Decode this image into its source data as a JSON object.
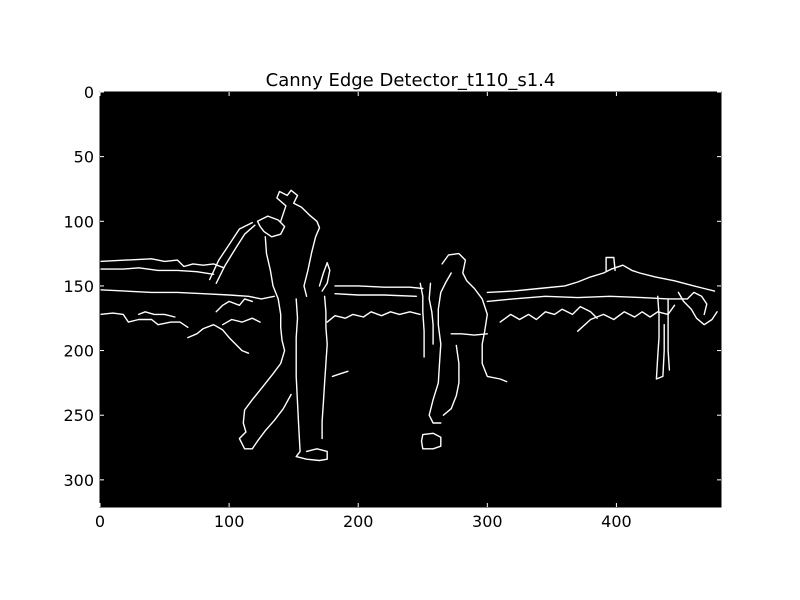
{
  "chart_data": {
    "type": "image",
    "title": "Canny Edge Detector_t110_s1.4",
    "image_width": 481,
    "image_height": 321,
    "xlim": [
      0,
      481
    ],
    "ylim": [
      321,
      0
    ],
    "xticks": [
      0,
      100,
      200,
      300,
      400
    ],
    "yticks": [
      0,
      50,
      100,
      150,
      200,
      250,
      300
    ],
    "xtick_labels": [
      "0",
      "100",
      "200",
      "300",
      "400"
    ],
    "ytick_labels": [
      "0",
      "50",
      "100",
      "150",
      "200",
      "250",
      "300"
    ],
    "background_color": "#000000",
    "edge_color": "#ffffff",
    "edges": [
      [
        [
          0,
          131
        ],
        [
          20,
          130
        ],
        [
          40,
          129
        ],
        [
          50,
          131
        ],
        [
          60,
          130
        ],
        [
          65,
          135
        ],
        [
          72,
          133
        ],
        [
          80,
          134
        ],
        [
          88,
          133
        ],
        [
          96,
          136
        ]
      ],
      [
        [
          0,
          137
        ],
        [
          18,
          137
        ],
        [
          30,
          136
        ],
        [
          45,
          138
        ],
        [
          60,
          138
        ],
        [
          75,
          139
        ],
        [
          88,
          141
        ]
      ],
      [
        [
          0,
          153
        ],
        [
          20,
          154
        ],
        [
          40,
          155
        ],
        [
          60,
          155
        ],
        [
          80,
          156
        ],
        [
          100,
          157
        ],
        [
          115,
          158
        ],
        [
          125,
          160
        ],
        [
          135,
          158
        ]
      ],
      [
        [
          0,
          172
        ],
        [
          10,
          171
        ],
        [
          18,
          172
        ],
        [
          22,
          178
        ],
        [
          30,
          176
        ],
        [
          40,
          176
        ],
        [
          45,
          180
        ],
        [
          55,
          178
        ],
        [
          62,
          178
        ],
        [
          68,
          182
        ]
      ],
      [
        [
          30,
          172
        ],
        [
          35,
          170
        ],
        [
          42,
          172
        ],
        [
          50,
          172
        ],
        [
          58,
          174
        ]
      ],
      [
        [
          68,
          190
        ],
        [
          75,
          187
        ],
        [
          80,
          183
        ],
        [
          88,
          180
        ],
        [
          95,
          184
        ],
        [
          100,
          190
        ],
        [
          105,
          195
        ],
        [
          110,
          200
        ],
        [
          115,
          202
        ]
      ],
      [
        [
          90,
          170
        ],
        [
          95,
          165
        ],
        [
          100,
          162
        ],
        [
          108,
          165
        ],
        [
          112,
          160
        ],
        [
          118,
          162
        ]
      ],
      [
        [
          95,
          180
        ],
        [
          102,
          176
        ],
        [
          110,
          178
        ],
        [
          118,
          175
        ],
        [
          124,
          178
        ]
      ],
      [
        [
          85,
          145
        ],
        [
          92,
          130
        ],
        [
          100,
          118
        ],
        [
          108,
          106
        ],
        [
          118,
          101
        ]
      ],
      [
        [
          90,
          148
        ],
        [
          97,
          134
        ],
        [
          105,
          121
        ],
        [
          112,
          110
        ],
        [
          120,
          103
        ]
      ],
      [
        [
          122,
          100
        ],
        [
          130,
          96
        ],
        [
          138,
          99
        ],
        [
          143,
          104
        ],
        [
          140,
          110
        ],
        [
          133,
          112
        ],
        [
          127,
          108
        ],
        [
          124,
          104
        ],
        [
          122,
          100
        ]
      ],
      [
        [
          140,
          100
        ],
        [
          144,
          88
        ],
        [
          137,
          82
        ],
        [
          139,
          77
        ],
        [
          145,
          80
        ],
        [
          148,
          76
        ],
        [
          153,
          80
        ],
        [
          150,
          86
        ],
        [
          156,
          89
        ],
        [
          162,
          95
        ],
        [
          168,
          100
        ],
        [
          170,
          105
        ],
        [
          167,
          112
        ],
        [
          164,
          124
        ],
        [
          161,
          138
        ],
        [
          158,
          150
        ],
        [
          160,
          158
        ]
      ],
      [
        [
          128,
          112
        ],
        [
          129,
          125
        ],
        [
          132,
          138
        ],
        [
          134,
          150
        ],
        [
          138,
          160
        ],
        [
          140,
          172
        ],
        [
          140,
          182
        ],
        [
          141,
          192
        ],
        [
          143,
          200
        ],
        [
          140,
          210
        ],
        [
          134,
          218
        ],
        [
          126,
          228
        ],
        [
          118,
          238
        ],
        [
          112,
          246
        ],
        [
          111,
          256
        ],
        [
          113,
          263
        ]
      ],
      [
        [
          113,
          263
        ],
        [
          108,
          268
        ],
        [
          112,
          276
        ],
        [
          118,
          276
        ],
        [
          122,
          270
        ],
        [
          128,
          262
        ],
        [
          135,
          254
        ],
        [
          142,
          245
        ],
        [
          148,
          234
        ]
      ],
      [
        [
          170,
          150
        ],
        [
          173,
          140
        ],
        [
          176,
          132
        ],
        [
          178,
          138
        ],
        [
          176,
          148
        ],
        [
          172,
          154
        ]
      ],
      [
        [
          174,
          158
        ],
        [
          175,
          170
        ],
        [
          175,
          182
        ],
        [
          176,
          195
        ],
        [
          175,
          210
        ],
        [
          174,
          225
        ],
        [
          173,
          240
        ],
        [
          172,
          255
        ],
        [
          172,
          268
        ]
      ],
      [
        [
          152,
          160
        ],
        [
          153,
          175
        ],
        [
          152,
          190
        ],
        [
          152,
          205
        ],
        [
          152,
          220
        ],
        [
          153,
          240
        ],
        [
          154,
          260
        ],
        [
          155,
          278
        ],
        [
          152,
          282
        ],
        [
          160,
          284
        ],
        [
          170,
          285
        ],
        [
          176,
          284
        ],
        [
          176,
          278
        ],
        [
          168,
          276
        ],
        [
          160,
          278
        ]
      ],
      [
        [
          180,
          220
        ],
        [
          186,
          218
        ],
        [
          192,
          216
        ]
      ],
      [
        [
          182,
          150
        ],
        [
          200,
          150
        ],
        [
          220,
          151
        ],
        [
          240,
          151
        ],
        [
          250,
          152
        ]
      ],
      [
        [
          182,
          156
        ],
        [
          200,
          157
        ],
        [
          220,
          157
        ],
        [
          245,
          158
        ]
      ],
      [
        [
          176,
          178
        ],
        [
          182,
          173
        ],
        [
          190,
          175
        ],
        [
          196,
          172
        ],
        [
          204,
          174
        ],
        [
          210,
          170
        ],
        [
          218,
          173
        ],
        [
          225,
          170
        ],
        [
          232,
          172
        ],
        [
          240,
          170
        ],
        [
          248,
          172
        ]
      ],
      [
        [
          256,
          148
        ],
        [
          255,
          160
        ],
        [
          257,
          170
        ],
        [
          258,
          180
        ],
        [
          258,
          195
        ]
      ],
      [
        [
          248,
          148
        ],
        [
          250,
          158
        ],
        [
          250,
          170
        ],
        [
          251,
          185
        ],
        [
          251,
          205
        ]
      ],
      [
        [
          265,
          133
        ],
        [
          270,
          126
        ],
        [
          278,
          125
        ],
        [
          283,
          130
        ],
        [
          281,
          140
        ],
        [
          284,
          146
        ],
        [
          290,
          152
        ],
        [
          296,
          160
        ],
        [
          300,
          172
        ],
        [
          298,
          185
        ],
        [
          296,
          195
        ],
        [
          296,
          210
        ],
        [
          300,
          220
        ],
        [
          310,
          222
        ],
        [
          315,
          224
        ]
      ],
      [
        [
          272,
          140
        ],
        [
          268,
          147
        ],
        [
          264,
          155
        ],
        [
          262,
          168
        ],
        [
          262,
          180
        ],
        [
          264,
          195
        ],
        [
          263,
          210
        ],
        [
          262,
          225
        ],
        [
          258,
          238
        ],
        [
          255,
          250
        ],
        [
          258,
          256
        ],
        [
          264,
          256
        ]
      ],
      [
        [
          272,
          187
        ],
        [
          280,
          187
        ],
        [
          290,
          188
        ],
        [
          300,
          187
        ]
      ],
      [
        [
          276,
          196
        ],
        [
          278,
          210
        ],
        [
          278,
          225
        ],
        [
          276,
          235
        ],
        [
          272,
          245
        ],
        [
          266,
          250
        ]
      ],
      [
        [
          250,
          265
        ],
        [
          258,
          264
        ],
        [
          264,
          267
        ],
        [
          264,
          274
        ],
        [
          258,
          276
        ],
        [
          250,
          276
        ],
        [
          249,
          270
        ],
        [
          250,
          265
        ]
      ],
      [
        [
          300,
          155
        ],
        [
          320,
          154
        ],
        [
          340,
          152
        ],
        [
          360,
          150
        ],
        [
          370,
          147
        ],
        [
          380,
          143
        ],
        [
          390,
          140
        ],
        [
          396,
          137
        ],
        [
          405,
          134
        ],
        [
          412,
          138
        ],
        [
          418,
          140
        ],
        [
          430,
          143
        ],
        [
          445,
          146
        ],
        [
          460,
          150
        ],
        [
          468,
          152
        ],
        [
          476,
          154
        ]
      ],
      [
        [
          392,
          138
        ],
        [
          392,
          128
        ],
        [
          398,
          128
        ],
        [
          399,
          138
        ]
      ],
      [
        [
          300,
          162
        ],
        [
          320,
          160
        ],
        [
          345,
          158
        ],
        [
          370,
          159
        ],
        [
          395,
          158
        ],
        [
          420,
          159
        ],
        [
          440,
          160
        ],
        [
          455,
          160
        ]
      ],
      [
        [
          310,
          178
        ],
        [
          318,
          172
        ],
        [
          325,
          176
        ],
        [
          332,
          172
        ],
        [
          338,
          176
        ],
        [
          345,
          170
        ],
        [
          352,
          172
        ],
        [
          358,
          168
        ],
        [
          366,
          172
        ],
        [
          372,
          166
        ],
        [
          380,
          170
        ],
        [
          385,
          175
        ]
      ],
      [
        [
          370,
          185
        ],
        [
          380,
          176
        ],
        [
          390,
          172
        ],
        [
          398,
          176
        ],
        [
          406,
          170
        ],
        [
          414,
          174
        ],
        [
          420,
          170
        ],
        [
          426,
          174
        ],
        [
          432,
          170
        ],
        [
          440,
          172
        ],
        [
          445,
          165
        ]
      ],
      [
        [
          432,
          158
        ],
        [
          433,
          172
        ],
        [
          433,
          190
        ],
        [
          432,
          205
        ],
        [
          431,
          222
        ],
        [
          436,
          220
        ],
        [
          437,
          200
        ],
        [
          437,
          180
        ]
      ],
      [
        [
          440,
          160
        ],
        [
          440,
          180
        ],
        [
          440,
          200
        ],
        [
          441,
          215
        ]
      ],
      [
        [
          448,
          155
        ],
        [
          452,
          162
        ],
        [
          458,
          168
        ],
        [
          462,
          175
        ],
        [
          468,
          180
        ],
        [
          474,
          176
        ],
        [
          478,
          170
        ]
      ],
      [
        [
          455,
          160
        ],
        [
          460,
          155
        ],
        [
          466,
          158
        ],
        [
          470,
          164
        ],
        [
          468,
          172
        ]
      ]
    ]
  }
}
